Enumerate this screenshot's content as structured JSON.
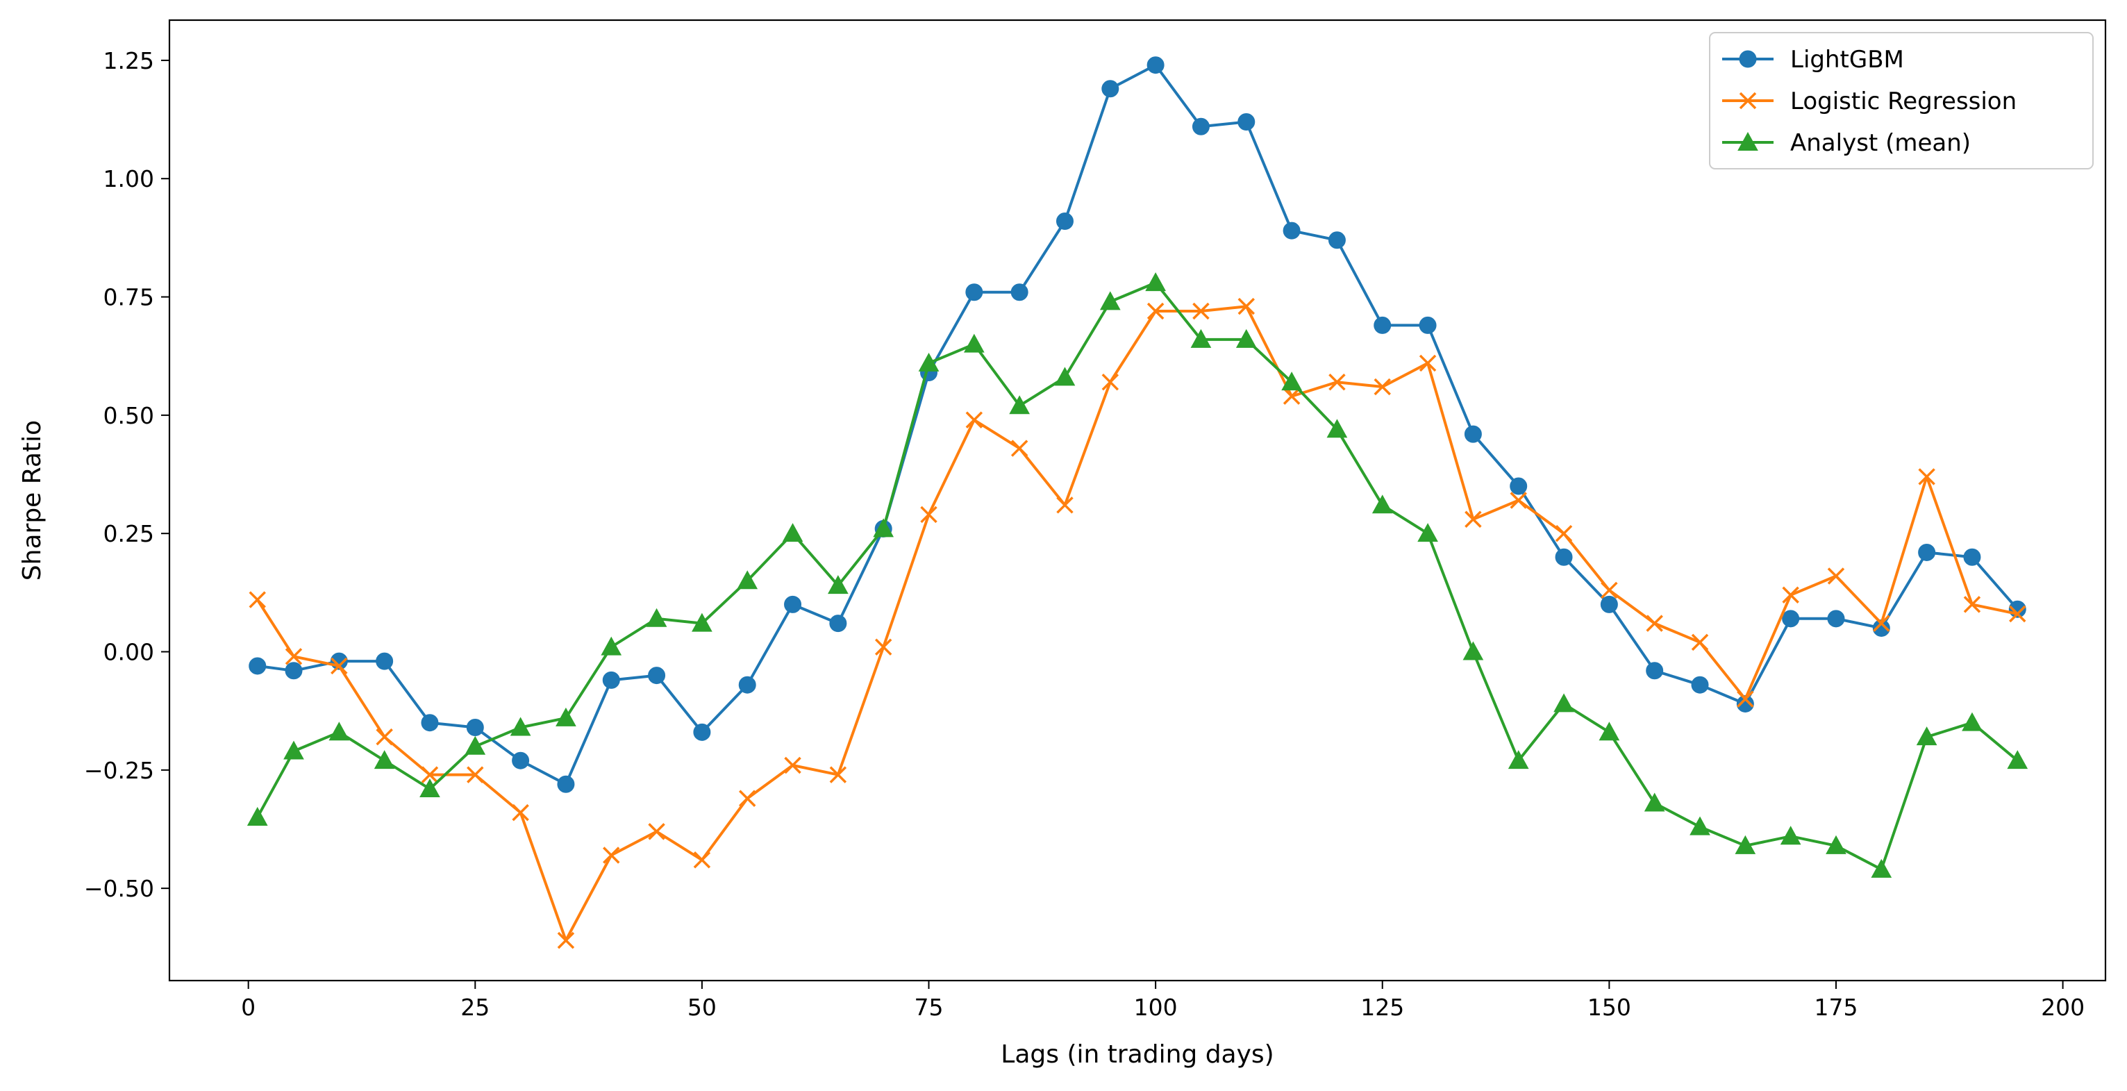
{
  "chart_data": {
    "type": "line",
    "title": "",
    "xlabel": "Lags (in trading days)",
    "ylabel": "Sharpe Ratio",
    "xlim": [
      -8.7,
      204.7
    ],
    "ylim": [
      -0.695,
      1.335
    ],
    "xticks": [
      0,
      25,
      50,
      75,
      100,
      125,
      150,
      175,
      200
    ],
    "yticks": [
      -0.5,
      -0.25,
      0.0,
      0.25,
      0.5,
      0.75,
      1.0,
      1.25
    ],
    "xtick_labels": [
      "0",
      "25",
      "50",
      "75",
      "100",
      "125",
      "150",
      "175",
      "200"
    ],
    "ytick_labels": [
      "−0.50",
      "−0.25",
      "0.00",
      "0.25",
      "0.50",
      "0.75",
      "1.00",
      "1.25"
    ],
    "grid": false,
    "legend_position": "top-right",
    "x": [
      1,
      5,
      10,
      15,
      20,
      25,
      30,
      35,
      40,
      45,
      50,
      55,
      60,
      65,
      70,
      75,
      80,
      85,
      90,
      95,
      100,
      105,
      110,
      115,
      120,
      125,
      130,
      135,
      140,
      145,
      150,
      155,
      160,
      165,
      170,
      175,
      180,
      185,
      190,
      195
    ],
    "series": [
      {
        "name": "LightGBM",
        "color": "#1f77b4",
        "marker": "circle",
        "values": [
          -0.03,
          -0.04,
          -0.02,
          -0.02,
          -0.15,
          -0.16,
          -0.23,
          -0.28,
          -0.06,
          -0.05,
          -0.17,
          -0.07,
          0.1,
          0.06,
          0.26,
          0.59,
          0.76,
          0.76,
          0.91,
          1.19,
          1.24,
          1.11,
          1.12,
          0.89,
          0.87,
          0.69,
          0.69,
          0.46,
          0.35,
          0.2,
          0.1,
          -0.04,
          -0.07,
          -0.11,
          0.07,
          0.07,
          0.05,
          0.21,
          0.2,
          0.09
        ]
      },
      {
        "name": "Logistic Regression",
        "color": "#ff7f0e",
        "marker": "x",
        "values": [
          0.11,
          -0.01,
          -0.03,
          -0.18,
          -0.26,
          -0.26,
          -0.34,
          -0.61,
          -0.43,
          -0.38,
          -0.44,
          -0.31,
          -0.24,
          -0.26,
          0.01,
          0.29,
          0.49,
          0.43,
          0.31,
          0.57,
          0.72,
          0.72,
          0.73,
          0.54,
          0.57,
          0.56,
          0.61,
          0.28,
          0.32,
          0.25,
          0.13,
          0.06,
          0.02,
          -0.1,
          0.12,
          0.16,
          0.06,
          0.37,
          0.1,
          0.08
        ]
      },
      {
        "name": "Analyst (mean)",
        "color": "#2ca02c",
        "marker": "triangle",
        "values": [
          -0.35,
          -0.21,
          -0.17,
          -0.23,
          -0.29,
          -0.2,
          -0.16,
          -0.14,
          0.01,
          0.07,
          0.06,
          0.15,
          0.25,
          0.14,
          0.26,
          0.61,
          0.65,
          0.52,
          0.58,
          0.74,
          0.78,
          0.66,
          0.66,
          0.57,
          0.47,
          0.31,
          0.25,
          0.0,
          -0.23,
          -0.11,
          -0.17,
          -0.32,
          -0.37,
          -0.41,
          -0.39,
          -0.41,
          -0.46,
          -0.18,
          -0.15,
          -0.23
        ]
      }
    ]
  }
}
